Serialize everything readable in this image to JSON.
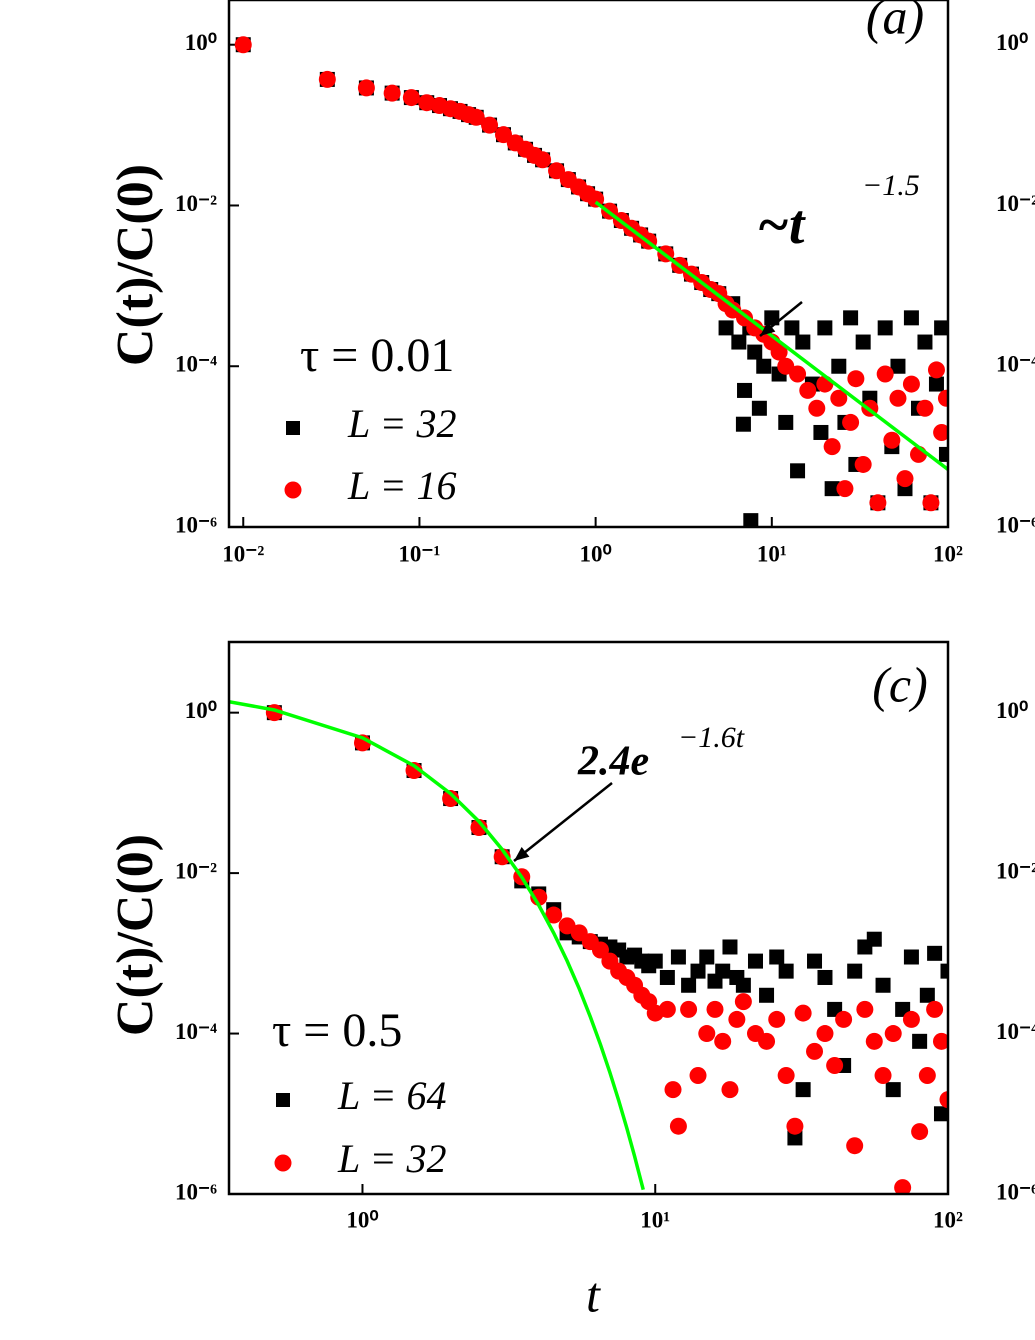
{
  "chart_data": [
    {
      "type": "scatter",
      "log_x": true,
      "log_y": true,
      "panel_label": "(a)",
      "ylabel": "C(t)/C(0)",
      "xlim": [
        0.0083,
        100
      ],
      "ylim": [
        1e-06,
        3.6
      ],
      "xticks": [
        {
          "value": 0.01,
          "label": "10⁻²"
        },
        {
          "value": 0.1,
          "label": "10⁻¹"
        },
        {
          "value": 1,
          "label": "10⁰"
        },
        {
          "value": 10,
          "label": "10¹"
        },
        {
          "value": 100,
          "label": "10²"
        }
      ],
      "yticks": [
        {
          "value": 1e-06,
          "label": "10⁻⁶"
        },
        {
          "value": 0.0001,
          "label": "10⁻⁴"
        },
        {
          "value": 0.01,
          "label": "10⁻²"
        },
        {
          "value": 1,
          "label": "10⁰"
        }
      ],
      "legend_title": "τ = 0.01",
      "series": [
        {
          "name": "L = 32",
          "color": "#000000",
          "marker": "square",
          "x": [
            0.01,
            0.03,
            0.05,
            0.07,
            0.09,
            0.11,
            0.13,
            0.15,
            0.17,
            0.19,
            0.21,
            0.25,
            0.3,
            0.35,
            0.4,
            0.45,
            0.5,
            0.6,
            0.7,
            0.8,
            0.9,
            1,
            1.2,
            1.4,
            1.6,
            1.8,
            2,
            2.5,
            3,
            3.5,
            4,
            4.5,
            5,
            5.5,
            6,
            6.5,
            6.9,
            7,
            7.5,
            7.6,
            8,
            8.5,
            9,
            10,
            11,
            12,
            13,
            14,
            15,
            17,
            19,
            20,
            22,
            24,
            26,
            28,
            30,
            33,
            36,
            40,
            44,
            48,
            52,
            57,
            62,
            68,
            74,
            80,
            86,
            92,
            98
          ],
          "values": [
            1,
            0.37,
            0.29,
            0.25,
            0.22,
            0.19,
            0.175,
            0.16,
            0.148,
            0.135,
            0.125,
            0.1,
            0.076,
            0.06,
            0.05,
            0.042,
            0.037,
            0.027,
            0.021,
            0.017,
            0.014,
            0.012,
            0.0085,
            0.0065,
            0.0052,
            0.0043,
            0.0036,
            0.0025,
            0.0018,
            0.0014,
            0.0011,
            0.0009,
            0.0008,
            0.0003,
            0.0006,
            0.0002,
            1.9e-05,
            5e-05,
            0.0003,
            1.2e-06,
            0.00015,
            3e-05,
            0.0001,
            0.0004,
            8e-05,
            2e-05,
            0.0003,
            5e-06,
            0.0002,
            6e-05,
            1.5e-05,
            0.0003,
            3e-06,
            0.0001,
            2e-05,
            0.0004,
            6e-06,
            0.0002,
            4e-05,
            2e-06,
            0.0003,
            1e-05,
            0.0001,
            3e-06,
            0.0004,
            3e-05,
            0.0002,
            2e-06,
            6e-05,
            0.0003,
            8e-06
          ]
        },
        {
          "name": "L = 16",
          "color": "#ff0000",
          "marker": "circle",
          "x": [
            0.01,
            0.03,
            0.05,
            0.07,
            0.09,
            0.11,
            0.13,
            0.15,
            0.17,
            0.19,
            0.21,
            0.25,
            0.3,
            0.35,
            0.4,
            0.45,
            0.5,
            0.6,
            0.7,
            0.8,
            0.9,
            1,
            1.2,
            1.4,
            1.6,
            1.8,
            2,
            2.5,
            3,
            3.5,
            4,
            4.5,
            5,
            5.5,
            6,
            7,
            8,
            9,
            10,
            11,
            12,
            14,
            16,
            18,
            20,
            22,
            24,
            26,
            28,
            30,
            33,
            36,
            40,
            44,
            48,
            52,
            57,
            62,
            68,
            74,
            80,
            86,
            92,
            98
          ],
          "values": [
            1,
            0.37,
            0.29,
            0.25,
            0.22,
            0.19,
            0.175,
            0.16,
            0.148,
            0.135,
            0.125,
            0.1,
            0.076,
            0.06,
            0.05,
            0.042,
            0.037,
            0.027,
            0.021,
            0.017,
            0.014,
            0.012,
            0.0085,
            0.0065,
            0.0052,
            0.0043,
            0.0036,
            0.0025,
            0.0018,
            0.0014,
            0.0011,
            0.0009,
            0.0008,
            0.0006,
            0.0005,
            0.0004,
            0.0003,
            0.00025,
            0.0002,
            0.00015,
            0.0001,
            8e-05,
            5e-05,
            3e-05,
            6e-05,
            1e-05,
            4e-05,
            3e-06,
            2e-05,
            7e-05,
            6e-06,
            3e-05,
            2e-06,
            8e-05,
            1.2e-05,
            4e-05,
            4e-06,
            6e-05,
            8e-06,
            3e-05,
            2e-06,
            9e-05,
            1.5e-05,
            4e-05
          ]
        }
      ],
      "fit_line": {
        "color": "#00ff00",
        "x": [
          1,
          100
        ],
        "values": [
          0.011,
          5.2e-06
        ]
      },
      "annotation": {
        "text": "~t",
        "exponent": "−1.5"
      }
    },
    {
      "type": "scatter",
      "log_y": true,
      "ylim": [
        1e-06,
        3.6
      ],
      "yticks": [
        {
          "value": 1e-06,
          "label": "10⁻⁶"
        },
        {
          "value": 0.0001,
          "label": "10⁻⁴"
        },
        {
          "value": 0.01,
          "label": "10⁻²"
        },
        {
          "value": 1,
          "label": "10⁰"
        }
      ]
    },
    {
      "type": "scatter",
      "log_x": true,
      "log_y": true,
      "panel_label": "(c)",
      "ylabel": "C(t)/C(0)",
      "xlabel": "t",
      "xlim": [
        0.35,
        100
      ],
      "ylim": [
        1e-06,
        7.6
      ],
      "xticks": [
        {
          "value": 1,
          "label": "10⁰"
        },
        {
          "value": 10,
          "label": "10¹"
        },
        {
          "value": 100,
          "label": "10²"
        }
      ],
      "yticks": [
        {
          "value": 1e-06,
          "label": "10⁻⁶"
        },
        {
          "value": 0.0001,
          "label": "10⁻⁴"
        },
        {
          "value": 0.01,
          "label": "10⁻²"
        },
        {
          "value": 1,
          "label": "10⁰"
        }
      ],
      "legend_title": "τ = 0.5",
      "series": [
        {
          "name": "L = 64",
          "color": "#000000",
          "marker": "square",
          "x": [
            0.5,
            1,
            1.5,
            2,
            2.5,
            3,
            3.5,
            4,
            4.5,
            5,
            5.5,
            6,
            6.5,
            7,
            7.5,
            8,
            8.5,
            9,
            9.5,
            10,
            11,
            12,
            13,
            14,
            15,
            16,
            17,
            18,
            19,
            20,
            22,
            24,
            26,
            28,
            30,
            32,
            35,
            38,
            41,
            44,
            48,
            52,
            56,
            60,
            65,
            70,
            75,
            80,
            85,
            90,
            95,
            100
          ],
          "values": [
            1,
            0.42,
            0.19,
            0.085,
            0.037,
            0.016,
            0.008,
            0.0055,
            0.0035,
            0.0018,
            0.0016,
            0.0014,
            0.0013,
            0.0012,
            0.0011,
            0.0009,
            0.00095,
            0.0008,
            0.0007,
            0.0008,
            0.0005,
            0.0009,
            0.0004,
            0.0006,
            0.0009,
            0.00045,
            0.0006,
            0.0012,
            0.0005,
            0.0004,
            0.0008,
            0.0003,
            0.0009,
            0.0006,
            5e-06,
            2e-05,
            0.0008,
            0.0005,
            0.0002,
            4e-05,
            0.0006,
            0.0012,
            0.0015,
            0.0004,
            2e-05,
            0.0002,
            0.0009,
            8e-05,
            0.0003,
            0.001,
            1e-05,
            0.0006
          ]
        },
        {
          "name": "L = 32",
          "color": "#ff0000",
          "marker": "circle",
          "x": [
            0.5,
            1,
            1.5,
            2,
            2.5,
            3,
            3.5,
            4,
            4.5,
            5,
            5.5,
            6,
            6.5,
            7,
            7.5,
            8,
            8.5,
            9,
            9.5,
            10,
            11,
            11.5,
            12,
            13,
            14,
            15,
            16,
            17,
            18,
            19,
            20,
            22,
            24,
            26,
            28,
            30,
            32,
            35,
            38,
            41,
            44,
            48,
            52,
            56,
            60,
            65,
            70,
            75,
            80,
            85,
            90,
            95,
            100
          ],
          "values": [
            1,
            0.42,
            0.19,
            0.085,
            0.037,
            0.016,
            0.009,
            0.005,
            0.003,
            0.0022,
            0.0018,
            0.0014,
            0.0011,
            0.0008,
            0.0006,
            0.0005,
            0.0004,
            0.0003,
            0.00025,
            0.00018,
            0.0002,
            2e-05,
            7e-06,
            0.0002,
            3e-05,
            0.0001,
            0.0002,
            8e-05,
            2e-05,
            0.00015,
            0.00025,
            0.0001,
            8e-05,
            0.00015,
            3e-05,
            7e-06,
            0.00018,
            6e-05,
            0.0001,
            4e-05,
            0.00015,
            4e-06,
            0.0002,
            8e-05,
            3e-05,
            0.0001,
            1.2e-06,
            0.00015,
            6e-06,
            3e-05,
            0.0002,
            8e-05,
            1.5e-05
          ]
        }
      ],
      "fit_line": {
        "color": "#00ff00",
        "x": [
          0.35,
          0.5,
          1,
          1.5,
          2,
          2.5,
          3,
          3.5,
          4,
          4.5,
          5,
          5.5,
          6,
          6.5,
          7,
          7.5,
          8,
          8.5,
          9.1
        ],
        "values": [
          1.37,
          1.079,
          0.485,
          0.218,
          0.0978,
          0.044,
          0.0197,
          0.00889,
          0.00399,
          0.00179,
          0.000805,
          0.000362,
          0.000162,
          7.3e-05,
          3.27e-05,
          1.47e-05,
          6.6e-06,
          2.96e-06,
          1.13e-06
        ]
      },
      "annotation": {
        "text": "2.4e",
        "exponent": "−1.6t"
      }
    },
    {
      "type": "scatter",
      "log_y": true,
      "ylim": [
        1e-06,
        7.6
      ],
      "yticks": [
        {
          "value": 1e-06,
          "label": "10⁻⁶"
        },
        {
          "value": 0.0001,
          "label": "10⁻⁴"
        },
        {
          "value": 0.01,
          "label": "10⁻²"
        },
        {
          "value": 1,
          "label": "10⁰"
        }
      ]
    }
  ]
}
